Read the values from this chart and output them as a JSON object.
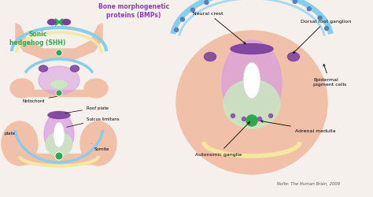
{
  "bg_color": "#f5f0eb",
  "title_bmp": "Bone morphogenetic\nproteins (BMPs)",
  "title_bmp_color": "#8b3db8",
  "title_shh": "Sonic\nhedgehog (SHH)",
  "title_shh_color": "#2ea84e",
  "label_notochord": "Notochord",
  "label_roof_plate": "Roof plate",
  "label_sulcus": "Sulcus limitans",
  "label_somite": "Somite",
  "label_plate": "plate",
  "label_neural_crest": "Neural crest",
  "label_dorsal_root": "Dorsal root ganglion",
  "label_epidermal": "Epidermal\npigment cells",
  "label_adrenal": "Adrenal medulla",
  "label_autonomic": "Autonomic ganglia",
  "label_citation": "Nolte: The Human Brain, 2009",
  "color_skin": "#f0c0a8",
  "color_blue": "#87ceeb",
  "color_yellow": "#f5e8a0",
  "color_purple_dark": "#7b3f9e",
  "color_purple_light": "#d9a0e0",
  "color_green_dark": "#2ea84e",
  "color_green_light": "#c8e8c0",
  "color_white": "#ffffff"
}
